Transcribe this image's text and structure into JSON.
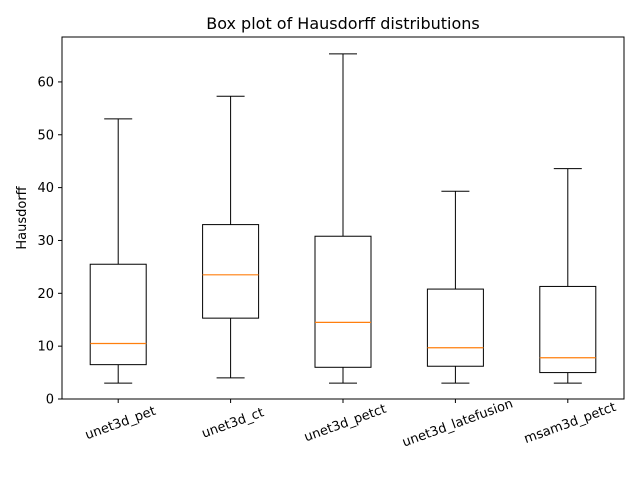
{
  "chart_data": {
    "type": "box",
    "title": "Box plot of Hausdorff distributions",
    "xlabel": "",
    "ylabel": "Hausdorff",
    "ylim": [
      0,
      68.5
    ],
    "yticks": [
      0,
      10,
      20,
      30,
      40,
      50,
      60
    ],
    "grid": false,
    "legend": "none",
    "colors": {
      "box": "#000000",
      "median": "#ff7f0e",
      "background": "#ffffff"
    },
    "categories": [
      "unet3d_pet",
      "unet3d_ct",
      "unet3d_petct",
      "unet3d_latefusion",
      "msam3d_petct"
    ],
    "boxes": [
      {
        "name": "unet3d_pet",
        "whisker_low": 3.0,
        "q1": 6.5,
        "median": 10.5,
        "q3": 25.5,
        "whisker_high": 53.0
      },
      {
        "name": "unet3d_ct",
        "whisker_low": 4.0,
        "q1": 15.3,
        "median": 23.5,
        "q3": 33.0,
        "whisker_high": 57.3
      },
      {
        "name": "unet3d_petct",
        "whisker_low": 3.0,
        "q1": 6.0,
        "median": 14.5,
        "q3": 30.8,
        "whisker_high": 65.3
      },
      {
        "name": "unet3d_latefusion",
        "whisker_low": 3.0,
        "q1": 6.2,
        "median": 9.7,
        "q3": 20.8,
        "whisker_high": 39.3
      },
      {
        "name": "msam3d_petct",
        "whisker_low": 3.0,
        "q1": 5.0,
        "median": 7.8,
        "q3": 21.3,
        "whisker_high": 43.6
      }
    ]
  }
}
